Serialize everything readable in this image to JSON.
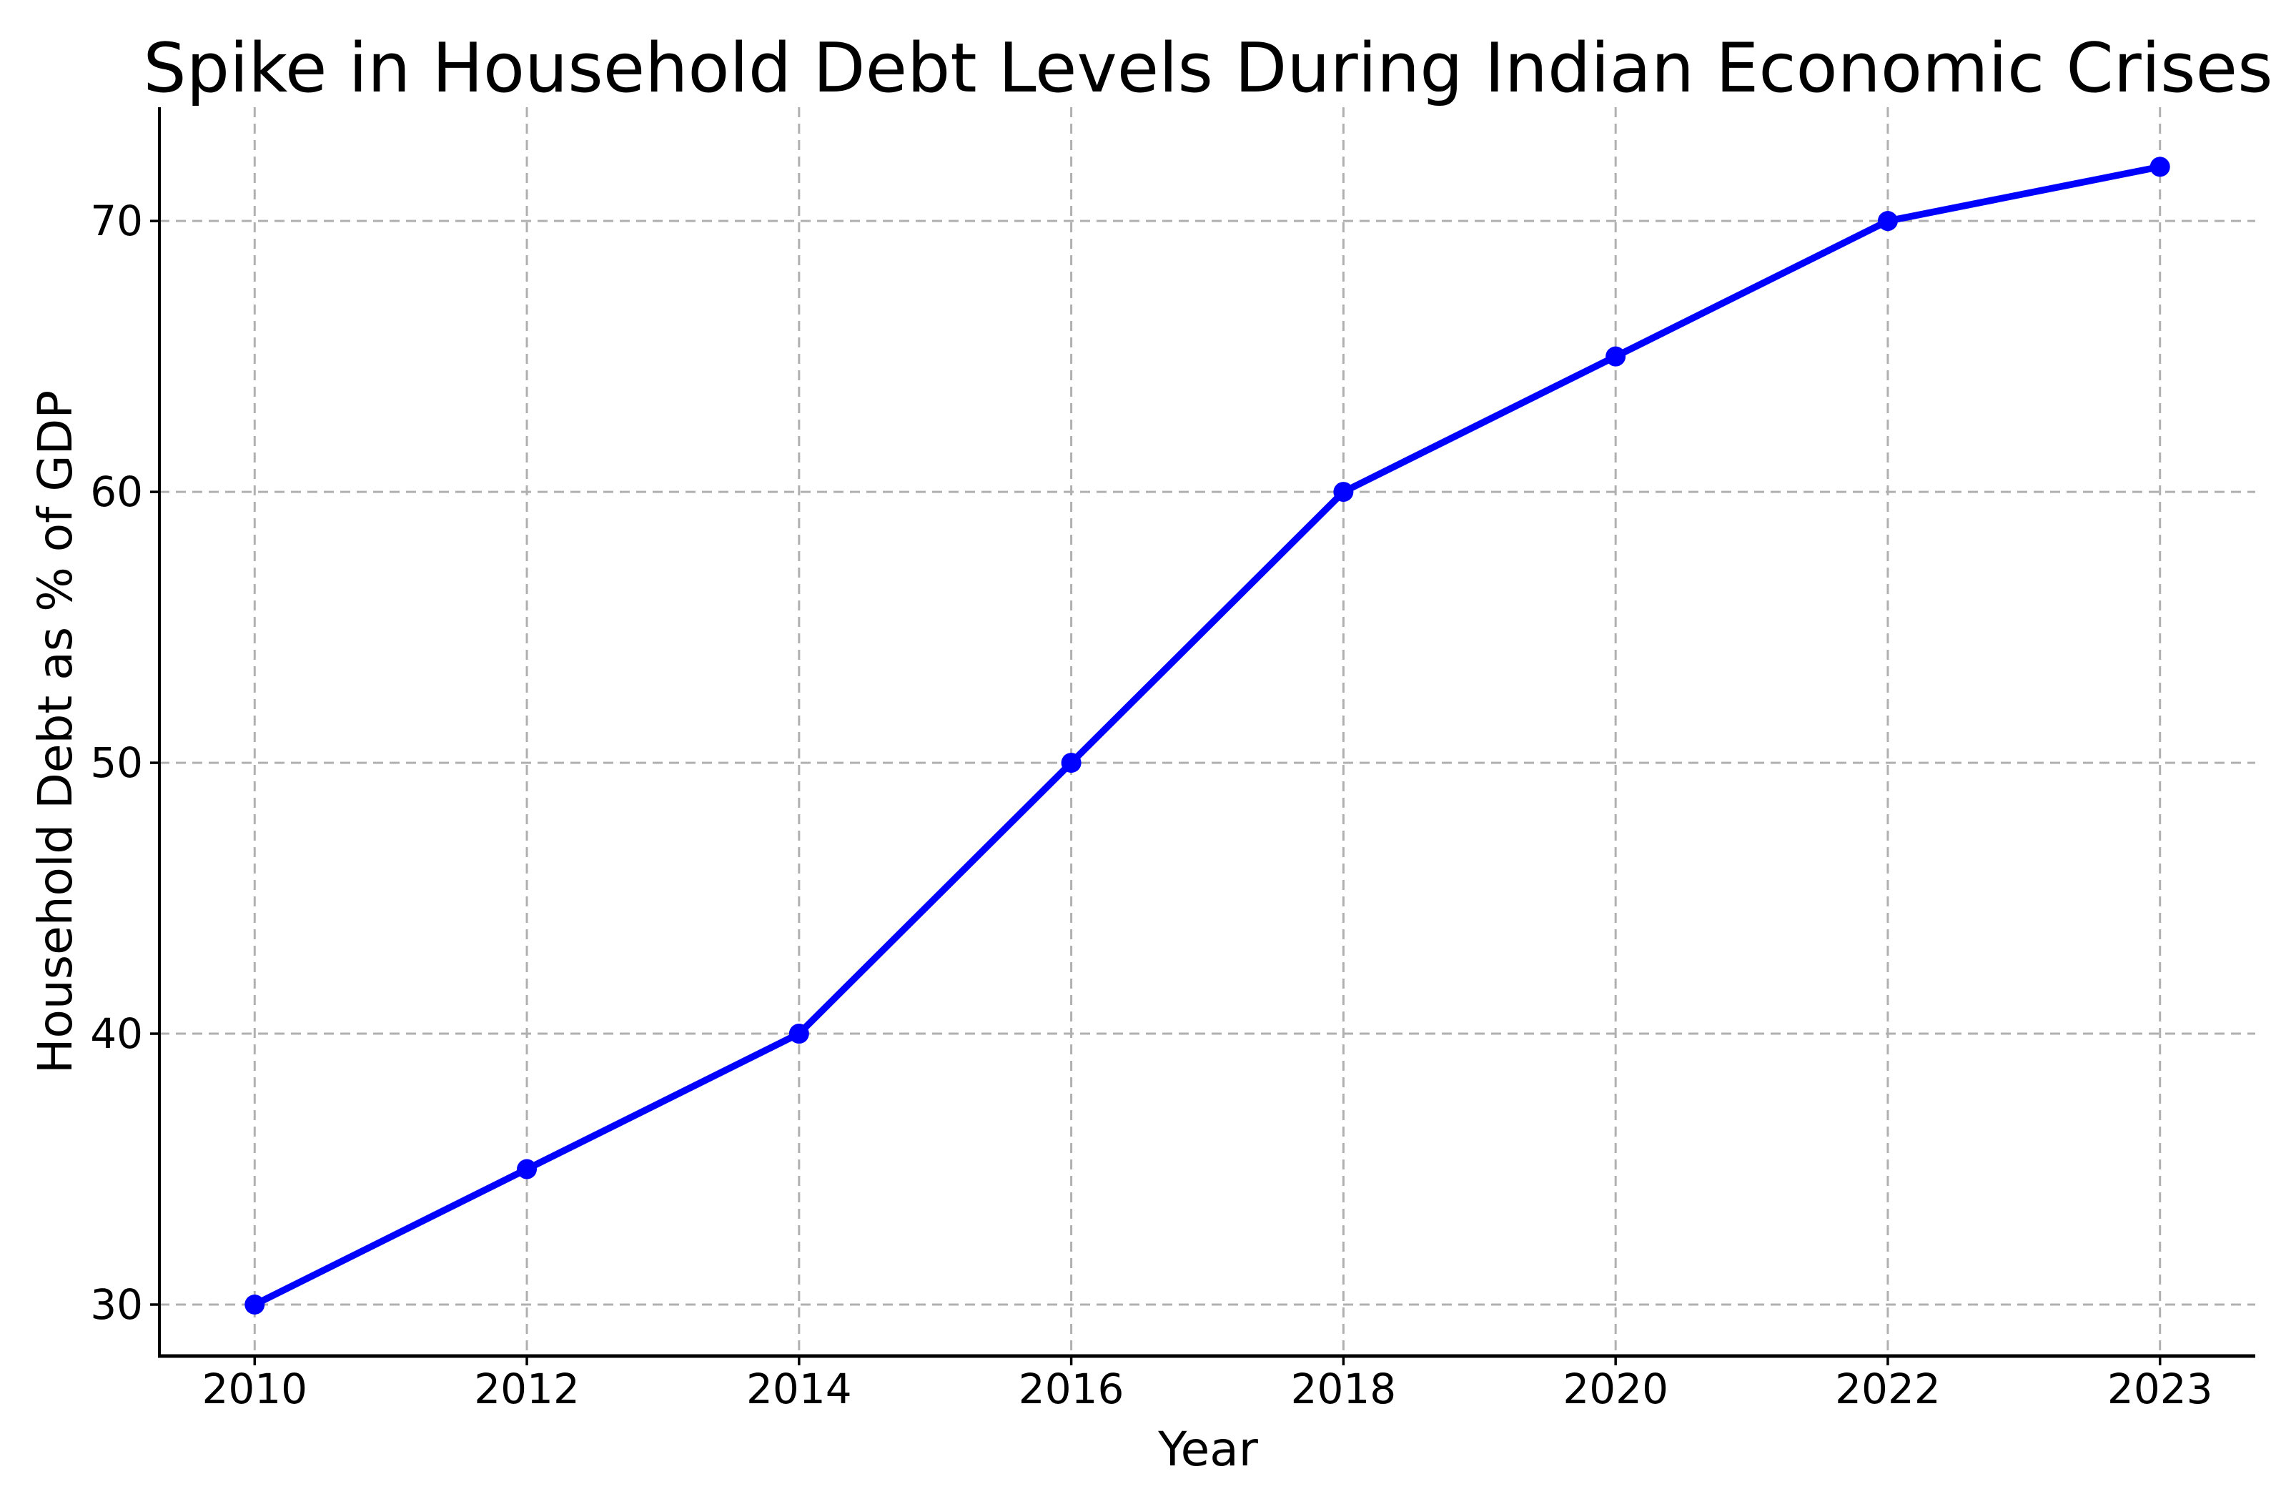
{
  "figure": {
    "background": "#ffffff"
  },
  "chart_data": {
    "type": "line",
    "title": "Spike in Household Debt Levels During Indian Economic Crises",
    "xlabel": "Year",
    "ylabel": "Household Debt as % of GDP",
    "categories": [
      "2010",
      "2012",
      "2014",
      "2016",
      "2018",
      "2020",
      "2022",
      "2023"
    ],
    "series": [
      {
        "name": "Household Debt as % of GDP",
        "values": [
          30,
          35,
          40,
          50,
          60,
          65,
          70,
          72
        ]
      }
    ],
    "yticks": [
      30,
      40,
      50,
      60,
      70
    ],
    "ylim": [
      28.1,
      74.2
    ],
    "grid": true,
    "grid_style": "dashed",
    "legend_position": "none",
    "line_color": "#0000ff",
    "marker": "circle",
    "marker_color": "#0000ff",
    "grid_color": "#b0b0b0",
    "axis_color": "#000000",
    "text_color": "#000000"
  }
}
